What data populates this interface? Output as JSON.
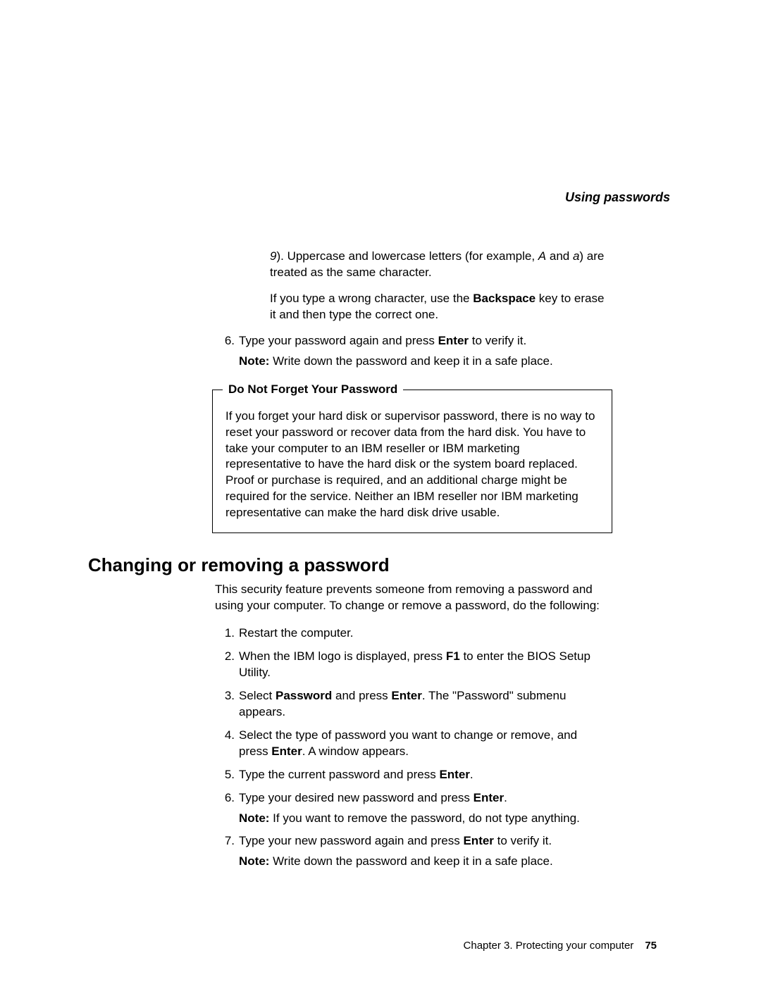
{
  "header": {
    "section_label": "Using passwords"
  },
  "top_section": {
    "para1_pre": "9",
    "para1_text": "). Uppercase and lowercase letters (for example, ",
    "para1_A": "A",
    "para1_text2": " and ",
    "para1_a": "a",
    "para1_text3": ") are treated as the same character.",
    "para2_pre": "If you type a wrong character, use the ",
    "para2_bold": "Backspace",
    "para2_post": " key to erase it and then type the correct one.",
    "item6_num": "6.",
    "item6_pre": "Type your password again and press ",
    "item6_bold": "Enter",
    "item6_post": " to verify it.",
    "item6_note_label": "Note:",
    "item6_note_text": "  Write down the password and keep it in a safe place."
  },
  "warning": {
    "title": "Do Not Forget Your Password",
    "body": "If you forget your hard disk or supervisor password, there is no way to reset your password or recover data from the hard disk. You have to take your computer to an IBM reseller or IBM marketing representative to have the hard disk or the system board replaced. Proof or purchase is required, and an additional charge might be required for the service. Neither an IBM reseller nor IBM marketing representative can make the hard disk drive usable."
  },
  "section2": {
    "title": "Changing or removing a password",
    "intro": "This security feature prevents someone from removing a password and using your computer. To change or remove a password, do the following:",
    "items": {
      "n1": "1.",
      "t1": "Restart the computer.",
      "n2": "2.",
      "t2_pre": "When the IBM logo is displayed, press ",
      "t2_b": "F1",
      "t2_post": " to enter the BIOS Setup Utility.",
      "n3": "3.",
      "t3_pre": "Select ",
      "t3_b1": "Password",
      "t3_mid": " and press ",
      "t3_b2": "Enter",
      "t3_post": ". The \"Password\" submenu appears.",
      "n4": "4.",
      "t4_pre": "Select the type of password you want to change or remove, and press ",
      "t4_b": "Enter",
      "t4_post": ". A window appears.",
      "n5": "5.",
      "t5_pre": "Type the current password and press ",
      "t5_b": "Enter",
      "t5_post": ".",
      "n6": "6.",
      "t6_pre": "Type your desired new password and press ",
      "t6_b": "Enter",
      "t6_post": ".",
      "t6_note_label": "Note:",
      "t6_note_text": "  If you want to remove the password, do not type anything.",
      "n7": "7.",
      "t7_pre": "Type your new password again and press ",
      "t7_b": "Enter",
      "t7_post": " to verify it.",
      "t7_note_label": "Note:",
      "t7_note_text": "  Write down the password and keep it in a safe place."
    }
  },
  "footer": {
    "chapter": "Chapter 3.  Protecting your computer",
    "page": "75"
  }
}
